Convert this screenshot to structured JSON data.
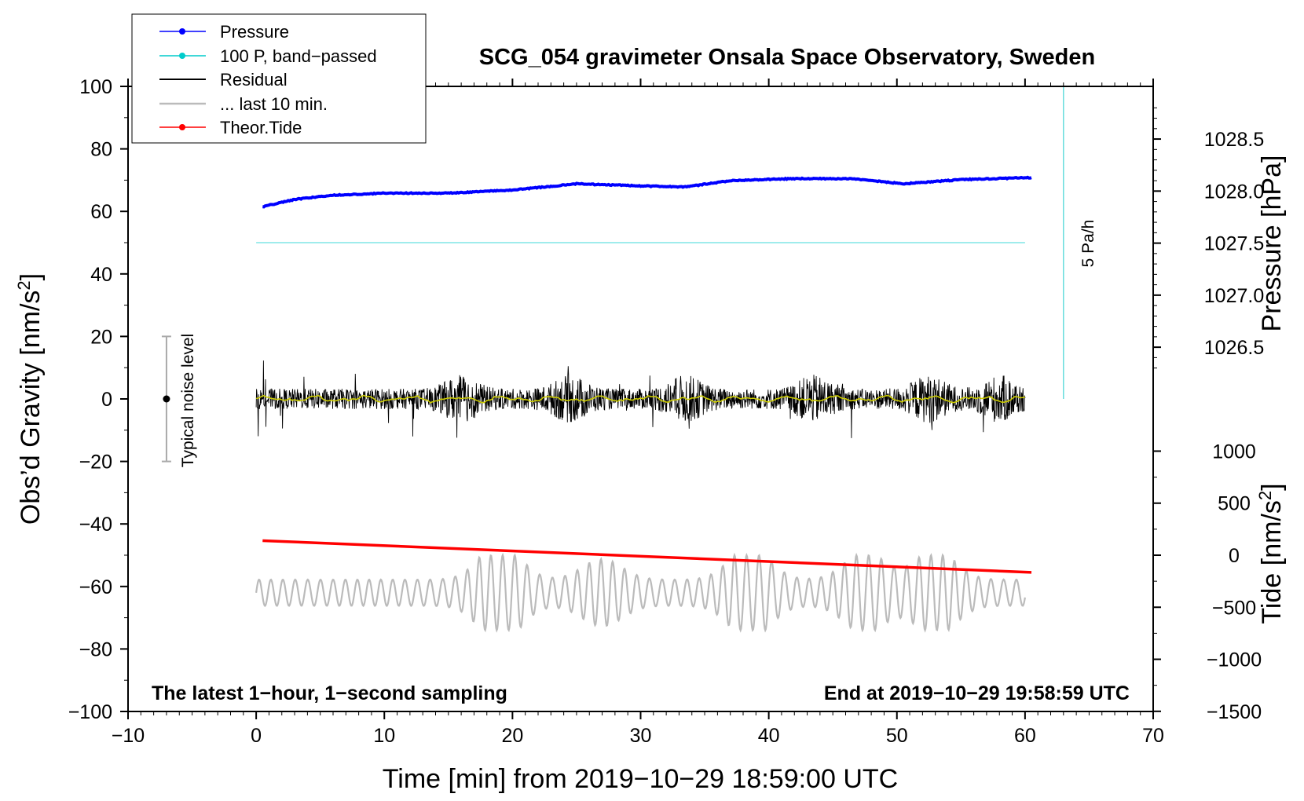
{
  "chart_data": {
    "type": "line",
    "title": "SCG_054 gravimeter Onsala Space Observatory, Sweden",
    "xlabel": "Time [min] from 2019−10−29 18:59:00 UTC",
    "xlim": [
      -10,
      70
    ],
    "xticks": [
      {
        "value": -10,
        "label": "−10"
      },
      {
        "value": 0,
        "label": "0"
      },
      {
        "value": 10,
        "label": "10"
      },
      {
        "value": 20,
        "label": "20"
      },
      {
        "value": 30,
        "label": "30"
      },
      {
        "value": 40,
        "label": "40"
      },
      {
        "value": 50,
        "label": "50"
      },
      {
        "value": 60,
        "label": "60"
      },
      {
        "value": 70,
        "label": "70"
      }
    ],
    "left_axis": {
      "label_main": "Obs’d Gravity [nm/s",
      "label_sup": "2",
      "label_end": "]",
      "ylim": [
        -100,
        100
      ],
      "ticks": [
        {
          "value": 100,
          "label": "100"
        },
        {
          "value": 80,
          "label": "80"
        },
        {
          "value": 60,
          "label": "60"
        },
        {
          "value": 40,
          "label": "40"
        },
        {
          "value": 20,
          "label": "20"
        },
        {
          "value": 0,
          "label": "0"
        },
        {
          "value": -20,
          "label": "−20"
        },
        {
          "value": -40,
          "label": "−40"
        },
        {
          "value": -60,
          "label": "−60"
        },
        {
          "value": -80,
          "label": "−80"
        },
        {
          "value": -100,
          "label": "−100"
        }
      ]
    },
    "right_pressure_axis": {
      "label": "Pressure [hPa]",
      "gravity_equiv_of_1028": 66.5,
      "gravity_per_hPa": 33.3,
      "ticks": [
        {
          "value": 1028.5,
          "label": "1028.5"
        },
        {
          "value": 1028.0,
          "label": "1028.0"
        },
        {
          "value": 1027.5,
          "label": "1027.5"
        },
        {
          "value": 1027.0,
          "label": "1027.0"
        },
        {
          "value": 1026.5,
          "label": "1026.5"
        }
      ]
    },
    "right_tide_axis": {
      "label_main": "Tide [nm/s",
      "label_sup": "2",
      "label_end": "]",
      "gravity_equiv_of_0": -50,
      "gravity_per_1000": 33.3,
      "ticks": [
        {
          "value": 1000,
          "label": "1000"
        },
        {
          "value": 500,
          "label": "500"
        },
        {
          "value": 0,
          "label": "0"
        },
        {
          "value": -500,
          "label": "−500"
        },
        {
          "value": -1000,
          "label": "−1000"
        },
        {
          "value": -1500,
          "label": "−1500"
        }
      ]
    },
    "legend": {
      "position": "top-left",
      "entries": [
        {
          "label": "Pressure",
          "color": "#0000ff",
          "marker": true
        },
        {
          "label": "100 P, band−passed",
          "color": "#00cccc",
          "marker": true
        },
        {
          "label": "Residual",
          "color": "#000000",
          "marker": false
        },
        {
          "label": "... last 10 min.",
          "color": "#bbbbbb",
          "marker": false
        },
        {
          "label": "Theor.Tide",
          "color": "#ff0000",
          "marker": true
        }
      ]
    },
    "series": [
      {
        "name": "Pressure",
        "axis": "pressure_hPa",
        "color": "#0000ff",
        "x": [
          0.5,
          3,
          6,
          10,
          15,
          20,
          25,
          30,
          33.5,
          37,
          42,
          46.5,
          50.5,
          55,
          60.5
        ],
        "y": [
          1027.85,
          1027.92,
          1027.96,
          1027.98,
          1027.98,
          1028.01,
          1028.07,
          1028.05,
          1028.04,
          1028.1,
          1028.12,
          1028.12,
          1028.07,
          1028.11,
          1028.13
        ]
      },
      {
        "name": "100 P, band−passed",
        "axis": "gravity",
        "color": "#00cccc",
        "x": [
          0,
          60
        ],
        "y": [
          50,
          50
        ]
      },
      {
        "name": "Residual",
        "axis": "gravity",
        "color": "#000000",
        "x_start": 0,
        "x_end": 60,
        "center": 0,
        "typical_amplitude": 5,
        "max_amplitude": 13
      },
      {
        "name": "Residual smoothed",
        "axis": "gravity",
        "color": "#cccc00",
        "x_start": 0,
        "x_end": 60,
        "center": 0
      },
      {
        "name": "Theor.Tide",
        "axis": "tide",
        "color": "#ff0000",
        "x": [
          0.5,
          60.5
        ],
        "y": [
          140,
          -165
        ]
      },
      {
        "name": "... last 10 min.",
        "axis": "gravity",
        "color": "#bbbbbb",
        "x_start": 0,
        "x_end": 60,
        "center": -62,
        "max_amplitude": 12
      }
    ],
    "noise_bar": {
      "x": -7,
      "center": 0,
      "low": -20,
      "high": 20,
      "label": "Typical noise level"
    },
    "pa_bar": {
      "x": 63,
      "y_low": 0,
      "y_high": 100,
      "label": "5 Pa/h",
      "color": "#66dddd"
    },
    "annotations": {
      "bottom_left": "The latest 1−hour, 1−second sampling",
      "bottom_right": "End at 2019−10−29 19:58:59 UTC"
    },
    "grid": false
  }
}
